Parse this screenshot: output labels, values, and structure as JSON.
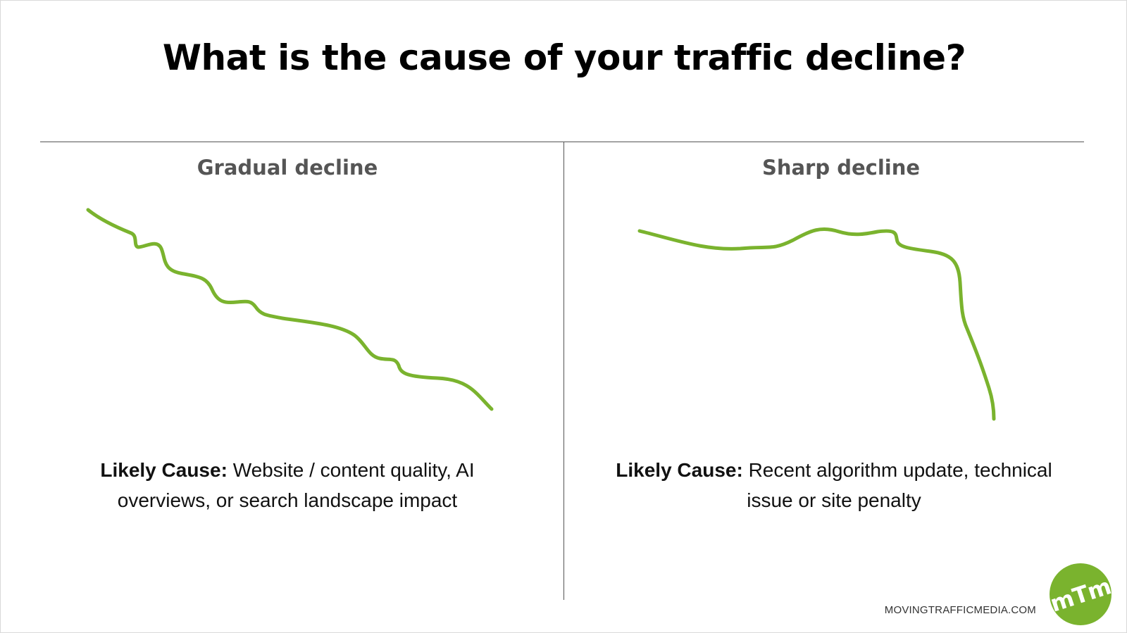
{
  "title": "What is the cause of your traffic decline?",
  "columns": [
    {
      "heading": "Gradual decline",
      "cause_label": "Likely Cause:",
      "cause_text": "Website / content quality, AI overviews, or search landscape impact",
      "trend": "gradual"
    },
    {
      "heading": "Sharp decline",
      "cause_label": "Likely Cause:",
      "cause_text": "Recent algorithm update, technical issue or site penalty",
      "trend": "sharp"
    }
  ],
  "footer": {
    "url": "MOVINGTRAFFICMEDIA.COM",
    "logo_text": "mTm"
  },
  "colors": {
    "accent": "#7ab32e",
    "title": "#000000",
    "heading": "#555555",
    "divider": "#555555"
  }
}
